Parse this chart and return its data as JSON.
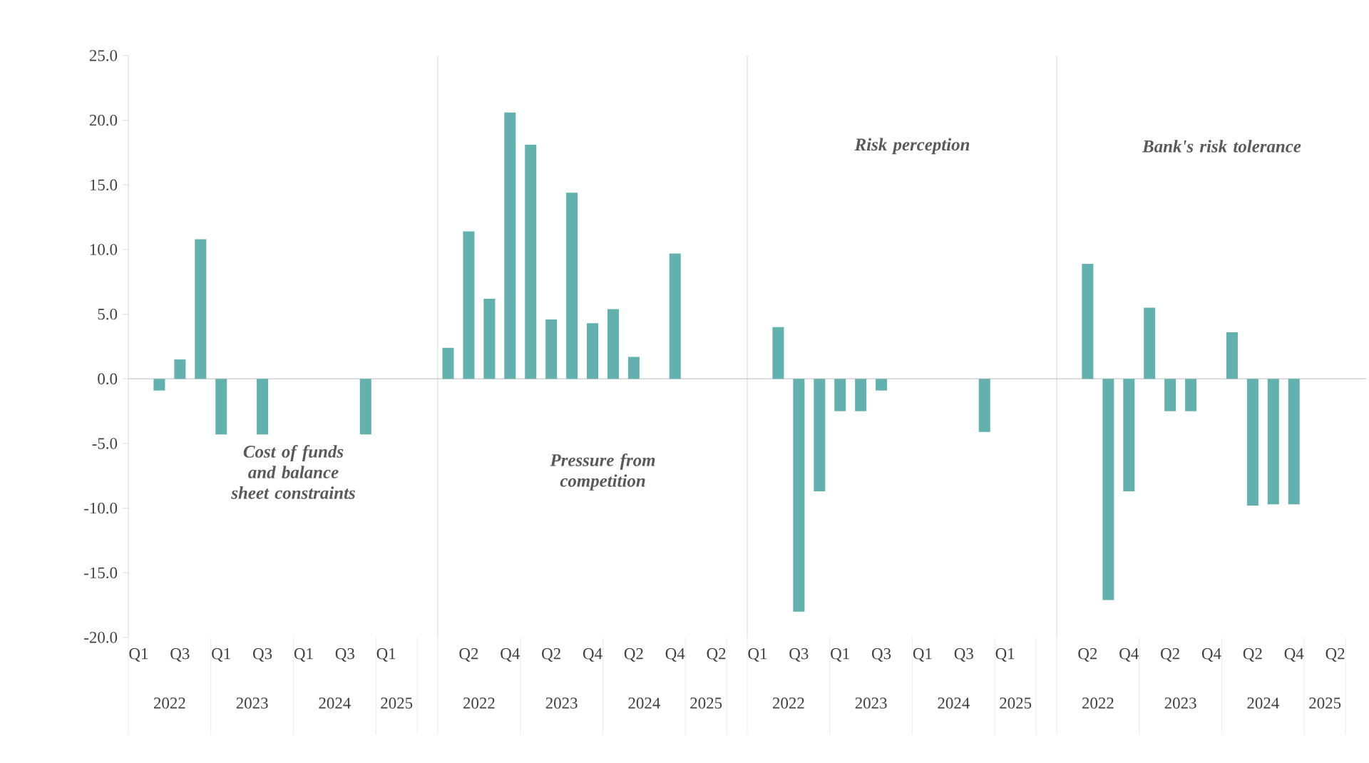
{
  "chart_data": [
    {
      "type": "bar",
      "categories": [
        "Q1",
        null,
        "Q3",
        null,
        "Q1",
        null,
        "Q3",
        null,
        "Q1",
        null,
        "Q3",
        null,
        "Q1",
        null
      ],
      "values": [
        null,
        -0.9,
        1.5,
        10.8,
        -4.3,
        null,
        -4.3,
        null,
        null,
        null,
        null,
        -4.3,
        null,
        null
      ],
      "color": "#62b1ae",
      "ylim": [
        -20,
        25
      ],
      "yticks": [
        {
          "value": -20,
          "label": "-20.0"
        },
        {
          "value": -15,
          "label": "-15.0"
        },
        {
          "value": -10,
          "label": "-10.0"
        },
        {
          "value": -5,
          "label": "-5.0"
        },
        {
          "value": 0,
          "label": "0.0"
        },
        {
          "value": 5,
          "label": "5.0"
        },
        {
          "value": 10,
          "label": "10.0"
        },
        {
          "value": 15,
          "label": "15.0"
        },
        {
          "value": 20,
          "label": "20.0"
        },
        {
          "value": 25,
          "label": "25.0"
        }
      ],
      "annotations": [
        "Cost of funds and balance sheet constraints",
        "2022",
        "2023",
        "2024",
        "2025"
      ]
    },
    {
      "type": "bar",
      "categories": [
        null,
        "Q2",
        null,
        "Q4",
        null,
        "Q2",
        null,
        "Q4",
        null,
        "Q2",
        null,
        "Q4",
        null,
        "Q2"
      ],
      "values": [
        2.4,
        11.4,
        6.2,
        20.6,
        18.1,
        4.6,
        14.4,
        4.3,
        5.4,
        1.7,
        null,
        9.7,
        null,
        null
      ],
      "color": "#62b1ae",
      "ylim": [
        -20,
        25
      ],
      "tick_labels": "x",
      "annotations": [
        "Pressure from competition",
        "2022",
        "2023",
        "2024",
        "2025"
      ]
    },
    {
      "type": "bar",
      "categories": [
        "Q1",
        null,
        "Q3",
        null,
        "Q1",
        null,
        "Q3",
        null,
        "Q1",
        null,
        "Q3",
        null,
        "Q1",
        null
      ],
      "values": [
        null,
        4.0,
        -18.0,
        -8.7,
        -2.5,
        -2.5,
        -0.9,
        null,
        null,
        null,
        null,
        -4.1,
        null,
        null
      ],
      "color": "#62b1ae",
      "ylim": [
        -20,
        25
      ],
      "tick_labels": "x",
      "annotations": [
        "Risk perception",
        "2022",
        "2023",
        "2024",
        "2025"
      ]
    },
    {
      "type": "bar",
      "categories": [
        null,
        "Q2",
        null,
        "Q4",
        null,
        "Q2",
        null,
        "Q4",
        null,
        "Q2",
        null,
        "Q4",
        null,
        "Q2"
      ],
      "values": [
        null,
        8.9,
        -17.1,
        -8.7,
        5.5,
        -2.5,
        -2.5,
        null,
        3.6,
        -9.8,
        -9.7,
        -9.7,
        null,
        null
      ],
      "color": "#62b1ae",
      "ylim": [
        -20,
        25
      ],
      "tick_labels": "x",
      "annotations": [
        "Bank's risk tolerance",
        "2022",
        "2023",
        "2024",
        "2025"
      ]
    }
  ]
}
